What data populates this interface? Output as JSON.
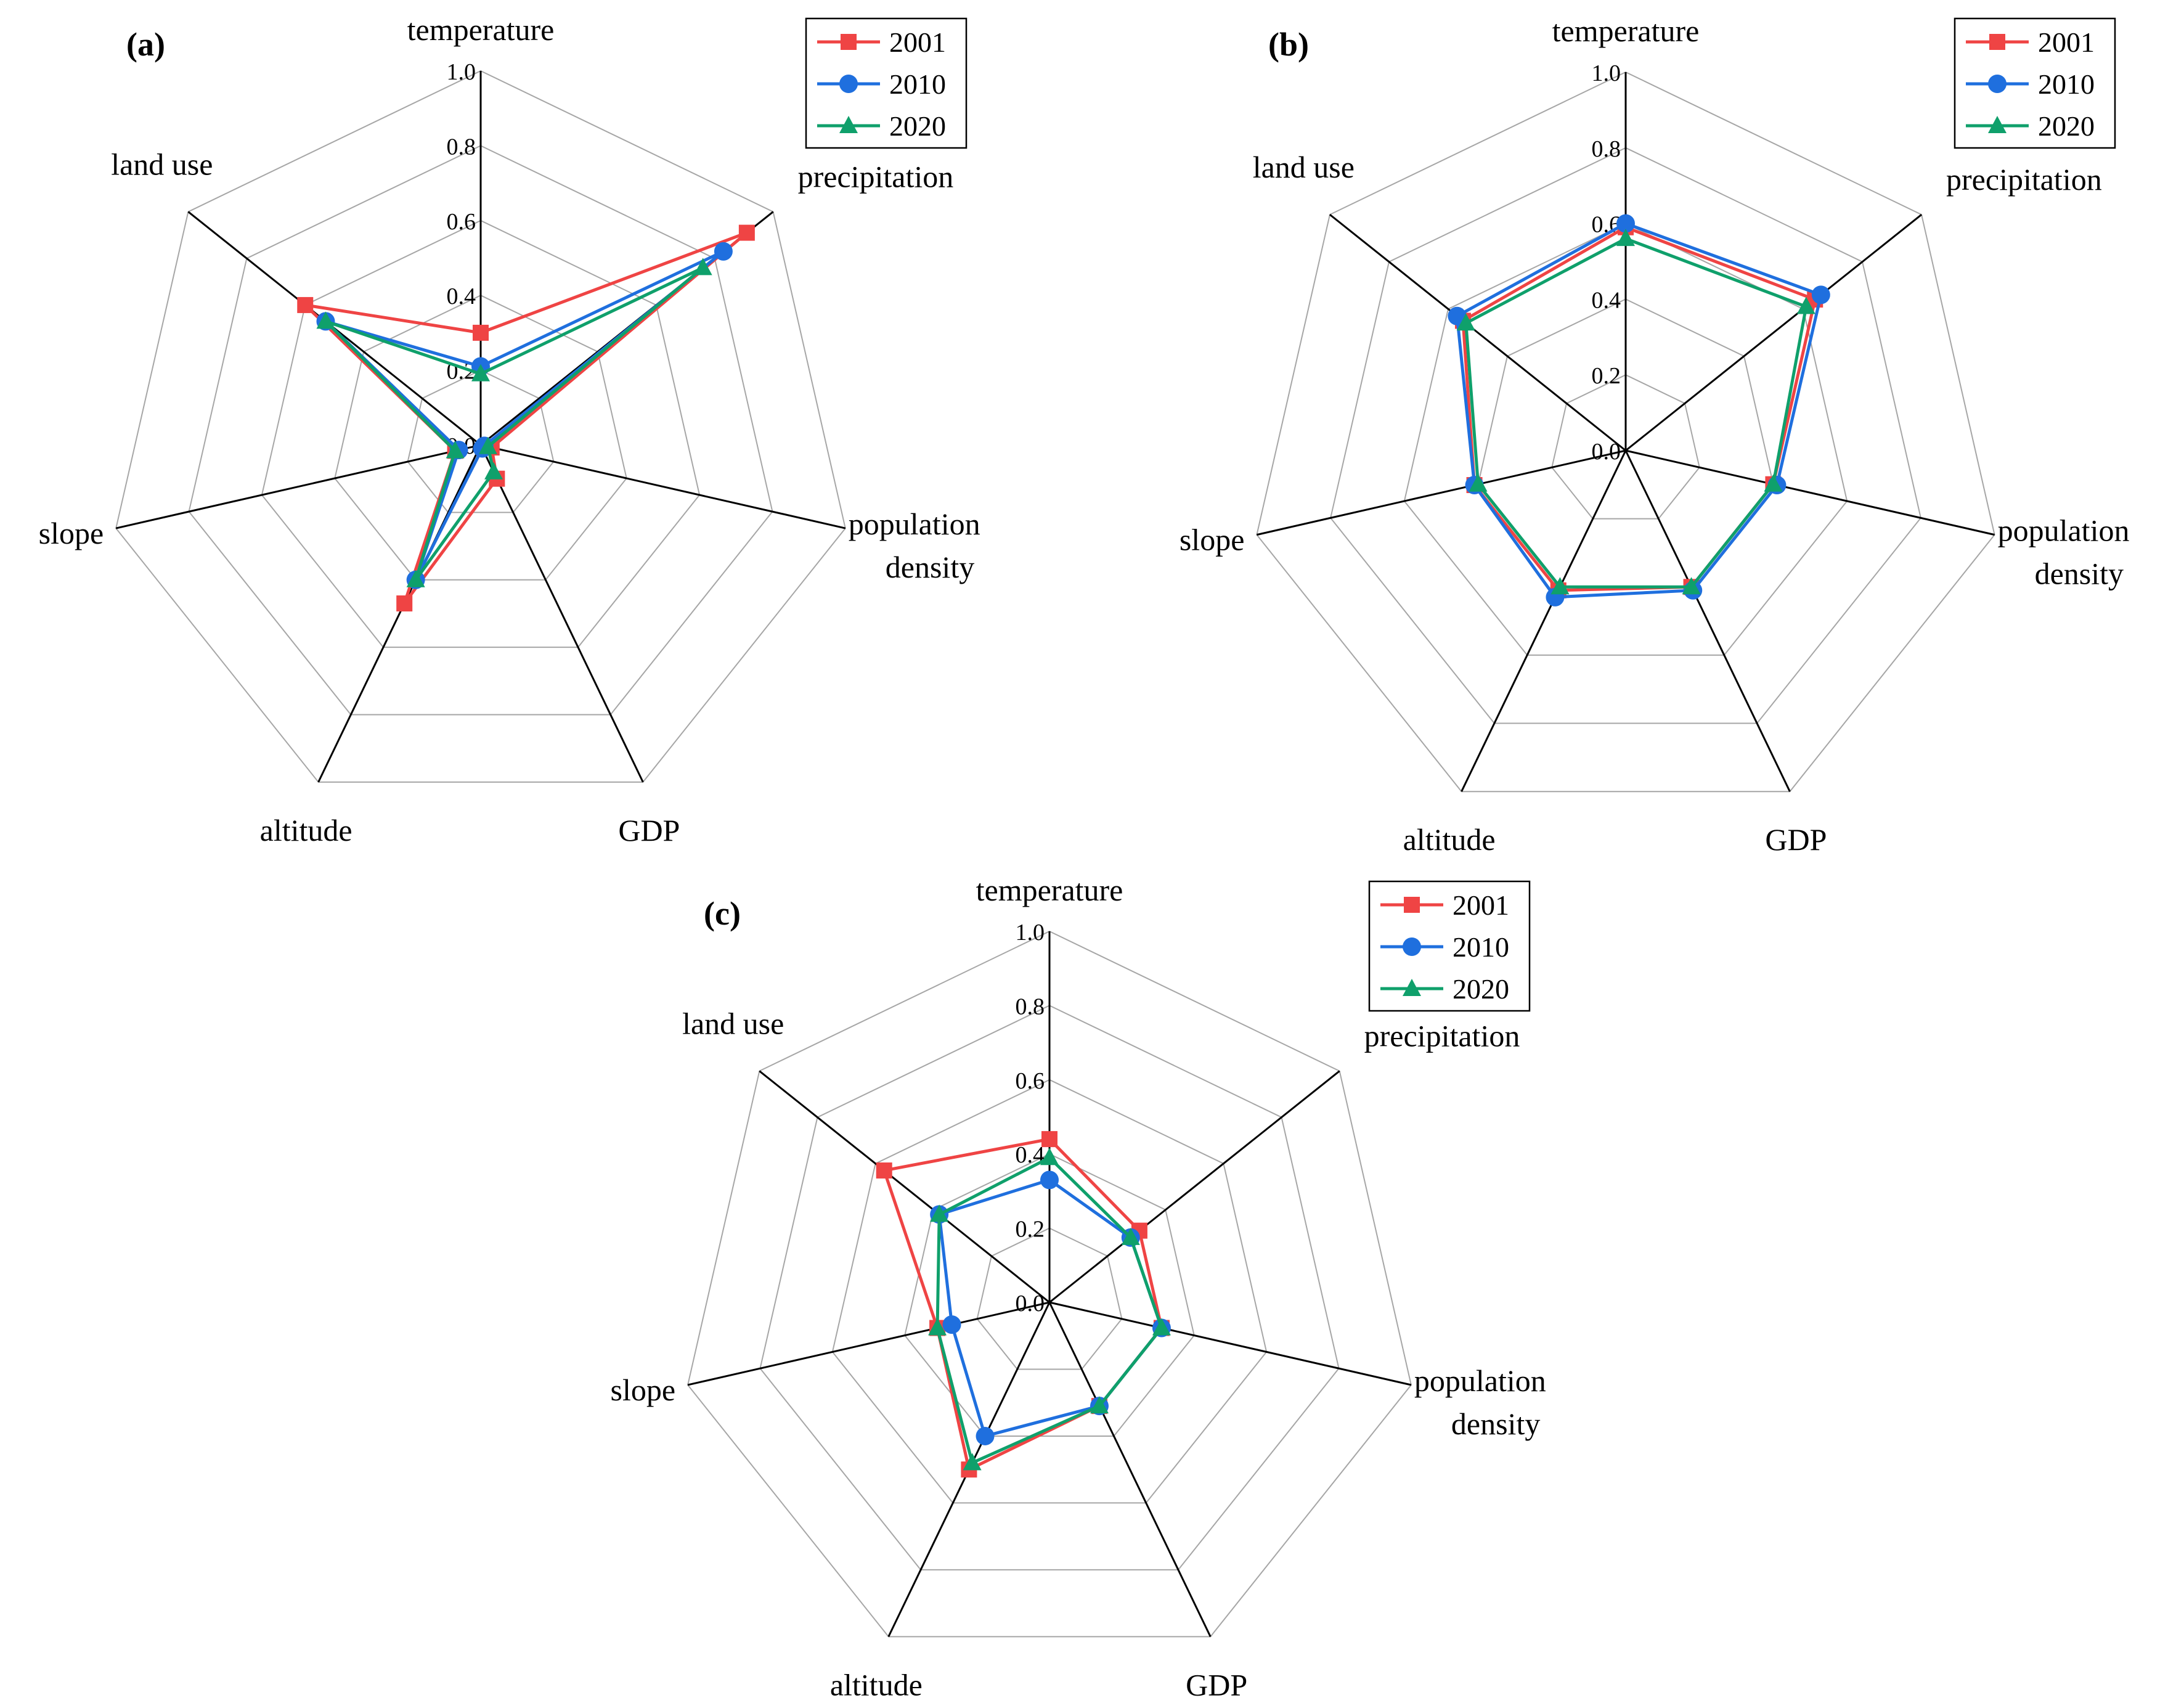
{
  "chart_data": [
    {
      "type": "radar",
      "panel": "(a)",
      "axes": [
        "temperature",
        "precipitation",
        "population density",
        "GDP",
        "altitude",
        "slope",
        "land use"
      ],
      "rlim": [
        0,
        1.0
      ],
      "ticks": [
        "0.0",
        "0.2",
        "0.4",
        "0.6",
        "0.8",
        "1.0"
      ],
      "legend": "top-right",
      "series": [
        {
          "name": "2001",
          "color": "#ef4444",
          "marker": "square",
          "values": [
            0.3,
            0.91,
            0.03,
            0.1,
            0.47,
            0.07,
            0.6
          ]
        },
        {
          "name": "2010",
          "color": "#1f6fde",
          "marker": "circle",
          "values": [
            0.21,
            0.83,
            0.01,
            0.01,
            0.4,
            0.06,
            0.53
          ]
        },
        {
          "name": "2020",
          "color": "#0fa06b",
          "marker": "triangle",
          "values": [
            0.19,
            0.76,
            0.02,
            0.08,
            0.4,
            0.07,
            0.53
          ]
        }
      ]
    },
    {
      "type": "radar",
      "panel": "(b)",
      "axes": [
        "temperature",
        "precipitation",
        "population density",
        "GDP",
        "altitude",
        "slope",
        "land use"
      ],
      "rlim": [
        0,
        1.0
      ],
      "ticks": [
        "0.0",
        "0.2",
        "0.4",
        "0.6",
        "0.8",
        "1.0"
      ],
      "legend": "top-right",
      "series": [
        {
          "name": "2001",
          "color": "#ef4444",
          "marker": "square",
          "values": [
            0.59,
            0.64,
            0.4,
            0.4,
            0.41,
            0.41,
            0.55
          ]
        },
        {
          "name": "2010",
          "color": "#1f6fde",
          "marker": "circle",
          "values": [
            0.6,
            0.66,
            0.41,
            0.41,
            0.43,
            0.41,
            0.57
          ]
        },
        {
          "name": "2020",
          "color": "#0fa06b",
          "marker": "triangle",
          "values": [
            0.56,
            0.61,
            0.4,
            0.4,
            0.4,
            0.4,
            0.54
          ]
        }
      ]
    },
    {
      "type": "radar",
      "panel": "(c)",
      "axes": [
        "temperature",
        "precipitation",
        "population density",
        "GDP",
        "altitude",
        "slope",
        "land use"
      ],
      "rlim": [
        0,
        1.0
      ],
      "ticks": [
        "0.0",
        "0.2",
        "0.4",
        "0.6",
        "0.8",
        "1.0"
      ],
      "legend": "top-right",
      "series": [
        {
          "name": "2001",
          "color": "#ef4444",
          "marker": "square",
          "values": [
            0.44,
            0.31,
            0.31,
            0.31,
            0.5,
            0.31,
            0.57
          ]
        },
        {
          "name": "2010",
          "color": "#1f6fde",
          "marker": "circle",
          "values": [
            0.33,
            0.28,
            0.31,
            0.31,
            0.4,
            0.27,
            0.38
          ]
        },
        {
          "name": "2020",
          "color": "#0fa06b",
          "marker": "triangle",
          "values": [
            0.39,
            0.28,
            0.31,
            0.31,
            0.48,
            0.31,
            0.38
          ]
        }
      ]
    }
  ]
}
